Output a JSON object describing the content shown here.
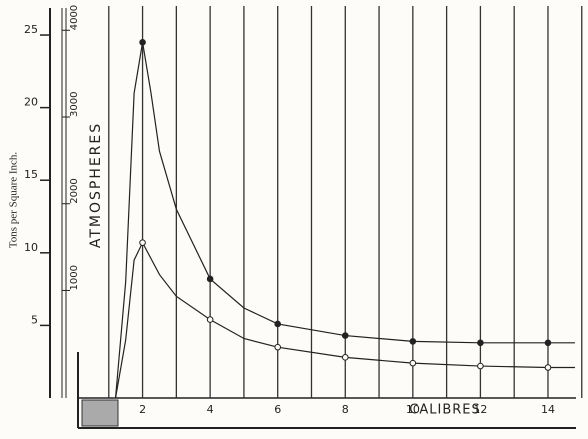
{
  "chart_data": {
    "type": "line",
    "y_label": "Tons per Square Inch.",
    "y2_label": "ATMOSPHERES",
    "x_label": "CALIBRES",
    "xlim": [
      0,
      14.8
    ],
    "xticks": [
      2,
      4,
      6,
      8,
      10,
      12,
      14
    ],
    "xgrid": [
      1,
      2,
      3,
      4,
      5,
      6,
      7,
      8,
      9,
      10,
      11,
      12,
      13,
      14,
      15
    ],
    "ylim": [
      0,
      27
    ],
    "yticks": [
      5,
      10,
      15,
      20,
      25
    ],
    "y2lim": [
      -240,
      4280
    ],
    "y2ticks": [
      1000,
      2000,
      3000,
      4000
    ],
    "x": [
      1.2,
      1.5,
      1.75,
      2,
      2.25,
      2.5,
      3,
      4,
      5,
      6,
      8,
      10,
      12,
      14,
      14.8
    ],
    "markers_at": [
      2,
      4,
      6,
      8,
      10,
      12,
      14
    ],
    "series": [
      {
        "color": "#222",
        "values": [
          0,
          8,
          21,
          24.5,
          21,
          17,
          13,
          8.2,
          6.2,
          5.1,
          4.3,
          3.9,
          3.8,
          3.8,
          3.8
        ]
      },
      {
        "color": "#222",
        "values": [
          0,
          4,
          9.5,
          10.7,
          9.6,
          8.5,
          7,
          5.4,
          4.1,
          3.5,
          2.8,
          2.4,
          2.2,
          2.1,
          2.1
        ]
      }
    ]
  }
}
